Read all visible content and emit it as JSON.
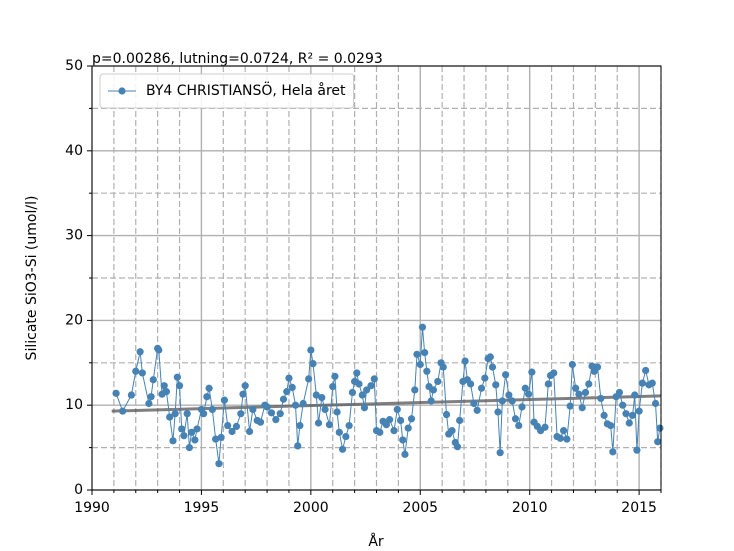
{
  "chart_data": {
    "type": "line",
    "title": "p=0.00286, lutning=0.0724, R² = 0.0293",
    "xlabel": "År",
    "ylabel": "Silicate SiO3-Si (umol/l)",
    "xlim": [
      1990,
      2016
    ],
    "ylim": [
      0,
      50
    ],
    "xticks": [
      1990,
      1995,
      2000,
      2005,
      2010,
      2015
    ],
    "yticks": [
      0,
      10,
      20,
      30,
      40,
      50
    ],
    "minor_xticks": [
      1991,
      1992,
      1993,
      1994,
      1996,
      1997,
      1998,
      1999,
      2001,
      2002,
      2003,
      2004,
      2006,
      2007,
      2008,
      2009,
      2011,
      2012,
      2013,
      2014,
      2016
    ],
    "minor_yticks": [
      5,
      15,
      25,
      35,
      45
    ],
    "grid": true,
    "legend": "upper left",
    "x": [
      1991.1,
      1991.4,
      1991.8,
      1992.0,
      1992.2,
      1992.3,
      1992.6,
      1992.7,
      1992.8,
      1993.0,
      1993.05,
      1993.2,
      1993.3,
      1993.4,
      1993.55,
      1993.7,
      1993.8,
      1993.9,
      1994.0,
      1994.1,
      1994.2,
      1994.35,
      1994.45,
      1994.55,
      1994.7,
      1994.8,
      1995.0,
      1995.1,
      1995.25,
      1995.35,
      1995.5,
      1995.65,
      1995.8,
      1995.9,
      1996.05,
      1996.2,
      1996.4,
      1996.6,
      1996.8,
      1996.9,
      1997.0,
      1997.2,
      1997.35,
      1997.55,
      1997.7,
      1997.9,
      1998.0,
      1998.2,
      1998.4,
      1998.6,
      1998.75,
      1998.9,
      1999.0,
      1999.15,
      1999.3,
      1999.4,
      1999.5,
      1999.65,
      1999.9,
      2000.0,
      2000.1,
      2000.25,
      2000.35,
      2000.5,
      2000.65,
      2000.85,
      2001.0,
      2001.1,
      2001.2,
      2001.3,
      2001.45,
      2001.6,
      2001.75,
      2001.9,
      2002.0,
      2002.1,
      2002.2,
      2002.35,
      2002.45,
      2002.55,
      2002.75,
      2002.9,
      2003.0,
      2003.15,
      2003.3,
      2003.45,
      2003.6,
      2003.8,
      2003.95,
      2004.1,
      2004.2,
      2004.3,
      2004.45,
      2004.6,
      2004.75,
      2004.85,
      2005.0,
      2005.1,
      2005.2,
      2005.3,
      2005.4,
      2005.5,
      2005.6,
      2005.8,
      2005.95,
      2006.05,
      2006.2,
      2006.3,
      2006.45,
      2006.6,
      2006.7,
      2006.8,
      2006.95,
      2007.05,
      2007.15,
      2007.3,
      2007.45,
      2007.6,
      2007.8,
      2007.95,
      2008.1,
      2008.2,
      2008.3,
      2008.45,
      2008.55,
      2008.65,
      2008.75,
      2008.9,
      2009.05,
      2009.2,
      2009.35,
      2009.5,
      2009.65,
      2009.8,
      2009.95,
      2010.1,
      2010.2,
      2010.35,
      2010.5,
      2010.7,
      2010.85,
      2010.95,
      2011.1,
      2011.25,
      2011.4,
      2011.55,
      2011.7,
      2011.85,
      2011.95,
      2012.1,
      2012.25,
      2012.4,
      2012.55,
      2012.7,
      2012.85,
      2012.95,
      2013.1,
      2013.25,
      2013.4,
      2013.55,
      2013.7,
      2013.8,
      2013.95,
      2014.1,
      2014.25,
      2014.4,
      2014.55,
      2014.7,
      2014.8,
      2014.9,
      2015.0,
      2015.15,
      2015.3,
      2015.45,
      2015.6,
      2015.75,
      2015.85,
      2015.95
    ],
    "series": [
      {
        "name": "BY4 CHRISTIANSÖ, Hela året",
        "color": "#4682b4",
        "values": [
          11.4,
          9.3,
          11.2,
          14.0,
          16.3,
          13.8,
          10.2,
          11.0,
          13.0,
          16.7,
          16.5,
          11.3,
          12.3,
          11.6,
          8.6,
          5.8,
          9.0,
          13.3,
          12.3,
          7.2,
          6.4,
          9.0,
          5.0,
          6.8,
          5.9,
          7.2,
          9.5,
          9.0,
          11.0,
          12.0,
          9.5,
          6.0,
          3.1,
          6.2,
          10.6,
          7.6,
          6.9,
          7.5,
          9.0,
          11.3,
          12.3,
          6.9,
          9.5,
          8.2,
          8.0,
          10.0,
          9.8,
          9.1,
          8.3,
          9.0,
          10.7,
          11.6,
          13.2,
          12.1,
          10.0,
          5.2,
          7.6,
          10.2,
          13.1,
          16.5,
          14.9,
          11.2,
          7.9,
          10.9,
          9.5,
          7.7,
          12.2,
          13.4,
          9.2,
          6.8,
          4.8,
          6.3,
          7.6,
          11.5,
          12.8,
          13.8,
          12.5,
          11.2,
          9.7,
          11.8,
          12.3,
          13.1,
          7.0,
          6.8,
          8.1,
          7.7,
          8.3,
          7.0,
          9.5,
          8.2,
          5.9,
          4.2,
          7.3,
          8.4,
          11.8,
          16.0,
          14.8,
          19.2,
          16.2,
          14.0,
          12.2,
          10.5,
          11.8,
          12.8,
          15.0,
          14.5,
          8.9,
          6.6,
          7.0,
          5.6,
          5.1,
          8.2,
          12.8,
          15.2,
          13.0,
          12.5,
          10.2,
          9.4,
          12.0,
          13.2,
          15.5,
          15.7,
          14.5,
          12.4,
          9.2,
          4.4,
          10.5,
          13.6,
          11.2,
          10.5,
          8.4,
          7.6,
          9.8,
          12.0,
          11.3,
          13.9,
          8.0,
          7.5,
          7.0,
          7.4,
          12.5,
          13.5,
          13.8,
          6.3,
          6.1,
          7.0,
          6.0,
          9.9,
          14.8,
          12.0,
          11.3,
          9.7,
          11.5,
          12.5,
          14.6,
          14.0,
          14.5,
          10.8,
          8.8,
          7.8,
          7.6,
          4.5,
          11.0,
          11.5,
          10.0,
          9.0,
          7.9,
          8.8,
          11.2,
          4.7,
          9.3,
          12.6,
          14.1,
          12.4,
          12.6,
          10.2,
          5.7,
          7.3
        ]
      }
    ],
    "trend": {
      "color": "#555555",
      "x": [
        1990.9,
        2016
      ],
      "values": [
        9.3,
        11.1
      ]
    }
  }
}
